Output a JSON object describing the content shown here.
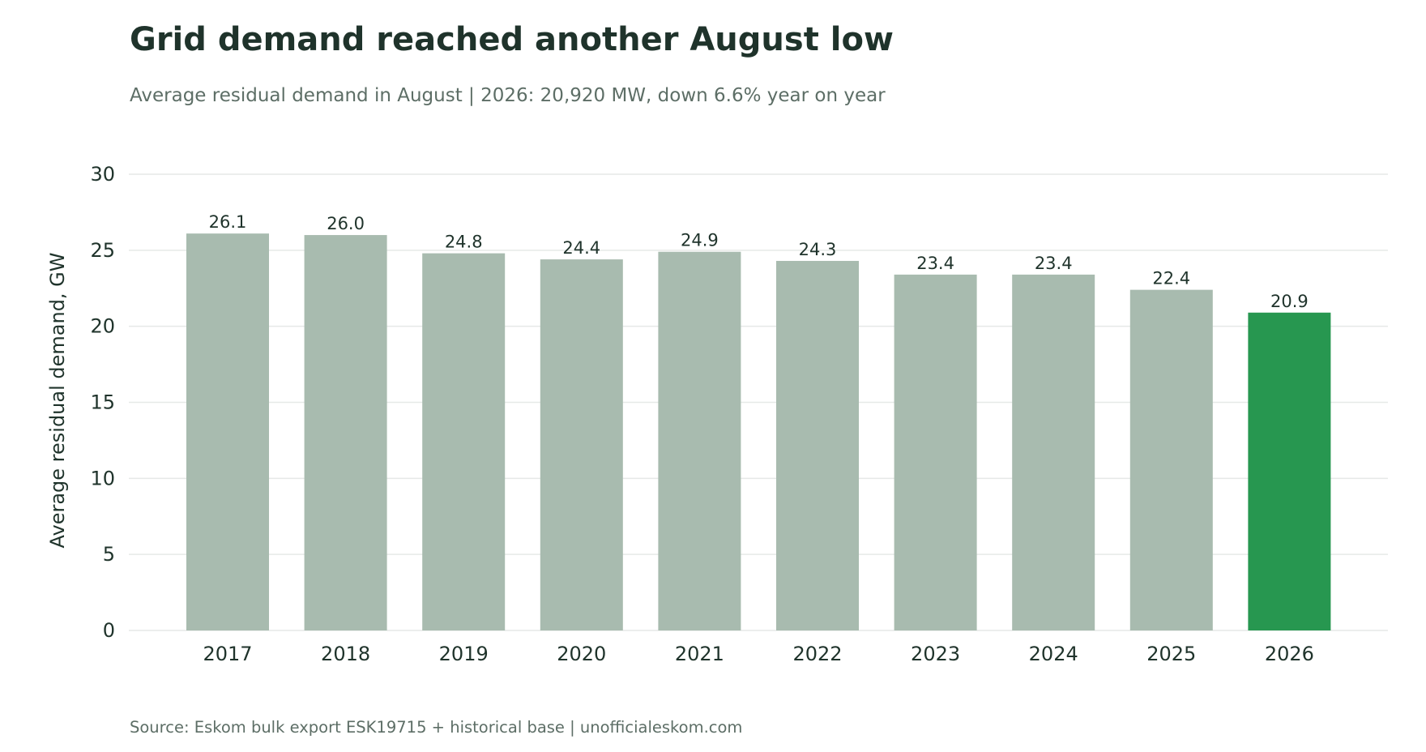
{
  "header": {
    "title": "Grid demand reached another August low",
    "subtitle": "Average residual demand in August  |  2026: 20,920 MW, down 6.6% year on year"
  },
  "footer": {
    "source": "Source: Eskom bulk export ESK19715 + historical base  |  unofficialeskom.com"
  },
  "colors": {
    "bar_default": "#a8bbaf",
    "bar_highlight": "#279750",
    "grid": "#e6e9e7",
    "text": "#1f332b"
  },
  "chart_data": {
    "type": "bar",
    "categories": [
      "2017",
      "2018",
      "2019",
      "2020",
      "2021",
      "2022",
      "2023",
      "2024",
      "2025",
      "2026"
    ],
    "values": [
      26.1,
      26.0,
      24.8,
      24.4,
      24.9,
      24.3,
      23.4,
      23.4,
      22.4,
      20.9
    ],
    "data_labels": [
      "26.1",
      "26.0",
      "24.8",
      "24.4",
      "24.9",
      "24.3",
      "23.4",
      "23.4",
      "22.4",
      "20.9"
    ],
    "highlight_category": "2026",
    "xlabel": "",
    "ylabel": "Average residual demand, GW",
    "ylim": [
      0,
      30
    ],
    "yticks": [
      0,
      5,
      10,
      15,
      20,
      25,
      30
    ],
    "grid": true,
    "legend": "none"
  }
}
